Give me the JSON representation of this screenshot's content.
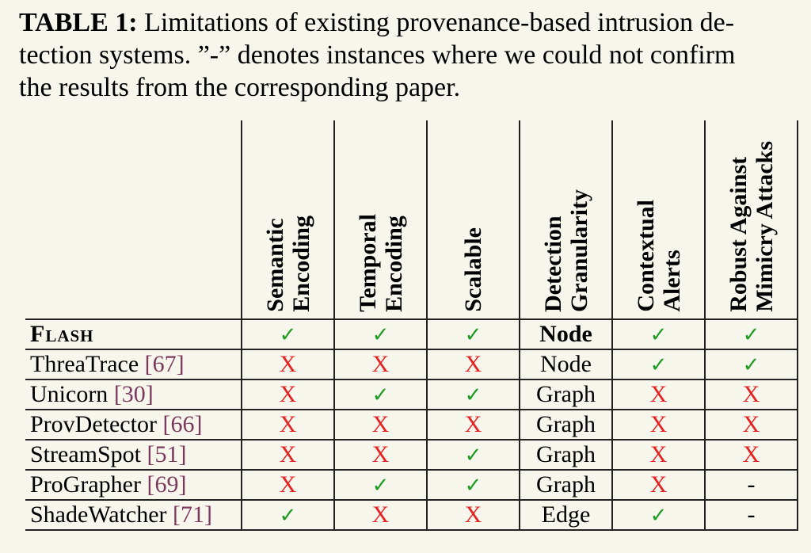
{
  "caption": {
    "label": "TABLE 1:",
    "lines": [
      " Limitations of existing provenance-based intrusion de-",
      "tection systems. ”-” denotes instances where we could not confirm",
      "the results from the corresponding paper."
    ]
  },
  "table": {
    "headers": [
      [
        "Semantic",
        "Encoding"
      ],
      [
        "Temporal",
        "Encoding"
      ],
      [
        "Scalable"
      ],
      [
        "Detection",
        "Granularity"
      ],
      [
        "Contextual",
        "Alerts"
      ],
      [
        "Robust  Against",
        "Mimicry Attacks"
      ]
    ],
    "rows": [
      {
        "name": "Flash",
        "ref": "",
        "bold": true,
        "cells": [
          "✓",
          "✓",
          "✓",
          "Node",
          "✓",
          "✓"
        ]
      },
      {
        "name": "ThreaTrace ",
        "ref": "[67]",
        "bold": false,
        "cells": [
          "X",
          "X",
          "X",
          "Node",
          "✓",
          "✓"
        ]
      },
      {
        "name": "Unicorn ",
        "ref": "[30]",
        "bold": false,
        "cells": [
          "X",
          "✓",
          "✓",
          "Graph",
          "X",
          "X"
        ]
      },
      {
        "name": "ProvDetector ",
        "ref": "[66]",
        "bold": false,
        "cells": [
          "X",
          "X",
          "X",
          "Graph",
          "X",
          "X"
        ]
      },
      {
        "name": "StreamSpot ",
        "ref": "[51]",
        "bold": false,
        "cells": [
          "X",
          "X",
          "✓",
          "Graph",
          "X",
          "X"
        ]
      },
      {
        "name": "ProGrapher ",
        "ref": "[69]",
        "bold": false,
        "cells": [
          "X",
          "✓",
          "✓",
          "Graph",
          "X",
          "-"
        ]
      },
      {
        "name": "ShadeWatcher ",
        "ref": "[71]",
        "bold": false,
        "cells": [
          "✓",
          "X",
          "X",
          "Edge",
          "✓",
          "-"
        ]
      }
    ]
  },
  "colors": {
    "check": "#1f9a22",
    "cross": "#e32222",
    "reference": "#7b3a5d",
    "background": "#f7f6ec"
  }
}
